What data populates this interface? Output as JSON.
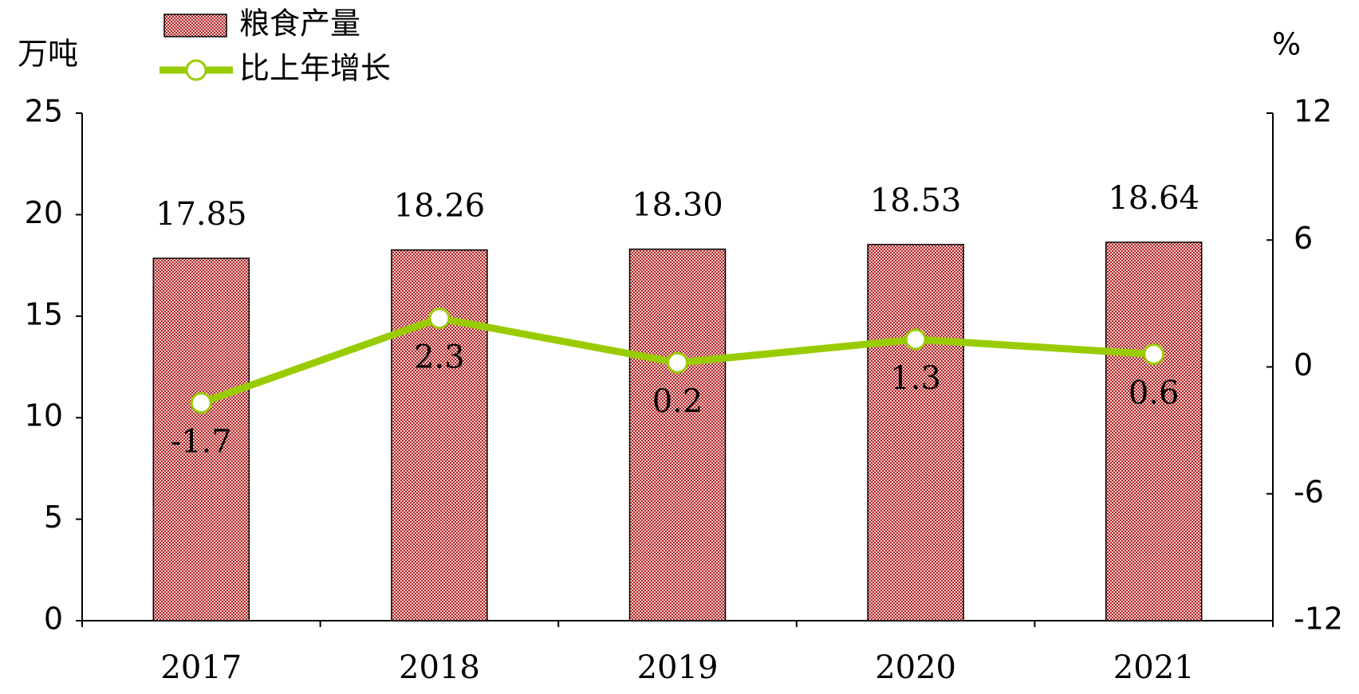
{
  "chart_data": {
    "type": "bar-line",
    "y_label": "万吨",
    "y2_label": "%",
    "categories": [
      "2017",
      "2018",
      "2019",
      "2020",
      "2021"
    ],
    "series": [
      {
        "name": "粮食产量",
        "type": "bar",
        "color": "#b22222",
        "values": [
          17.85,
          18.26,
          18.3,
          18.53,
          18.64
        ],
        "value_labels": [
          "17.85",
          "18.26",
          "18.30",
          "18.53",
          "18.64"
        ]
      },
      {
        "name": "比上年增长",
        "type": "line",
        "axis": "y2",
        "color": "#99cc00",
        "values": [
          -1.7,
          2.3,
          0.2,
          1.3,
          0.6
        ]
      }
    ],
    "ylim": [
      0,
      25
    ],
    "yticks": [
      0,
      5,
      10,
      15,
      20,
      25
    ],
    "y2lim": [
      -12,
      12
    ],
    "y2ticks": [
      -12,
      -6,
      0,
      6,
      12
    ]
  }
}
